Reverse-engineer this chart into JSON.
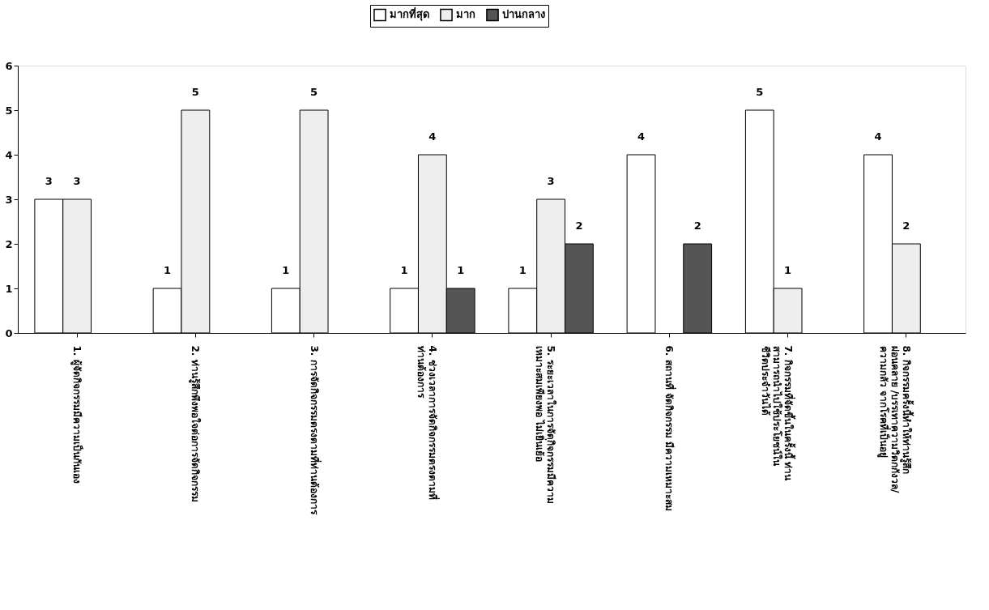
{
  "chart_data": {
    "type": "bar",
    "categories": [
      "1. ผู้จัดกิจกรรมมีความเป็นกันเอง",
      "2. ท่านรู้สึกพึงพอใจต่อการจัดกิจกรรม",
      "3. การจัดกิจกรรมตรงตามที่ท่านต้องการ",
      "4. ช่วงเวลาการจัดกิจกรรมตรงตามที่\nท่านต้องการ",
      "5. ระยะเวลาในการจัดกิจกรรมมีความ\nเหมาะสมเพียงพอ ไม่เยิ่นเย้อ",
      "6. สถานที่ จัดกิจกรรม มีความเหมาะสม",
      "7. กิจกรรมที่จัดขึ้นในครั้งนี้ ท่าน\nสามารถนำไปใช้ประโยชน์ใน\nชีวิตประจำวันได้",
      "8. กิจกรรมครั้งนี้ทำให้ท่านรู้สึก\nผ่อนคลาย /บรรเทาความวิตกกังวล/\nความกลัว จากโรคที่เป็นอยู่"
    ],
    "series": [
      {
        "name": "มากที่สุด",
        "color": "#ffffff",
        "values": [
          3,
          1,
          1,
          1,
          1,
          4,
          5,
          4
        ]
      },
      {
        "name": "มาก",
        "color": "#eeeeee",
        "values": [
          3,
          5,
          5,
          4,
          3,
          null,
          1,
          2
        ]
      },
      {
        "name": "ปานกลาง",
        "color": "#555555",
        "values": [
          null,
          null,
          null,
          1,
          2,
          2,
          null,
          null
        ]
      }
    ],
    "ylim": [
      0,
      6
    ],
    "yticks": [
      0,
      1,
      2,
      3,
      4,
      5,
      6
    ],
    "grid": false,
    "legend": "top",
    "data_labels": true
  }
}
